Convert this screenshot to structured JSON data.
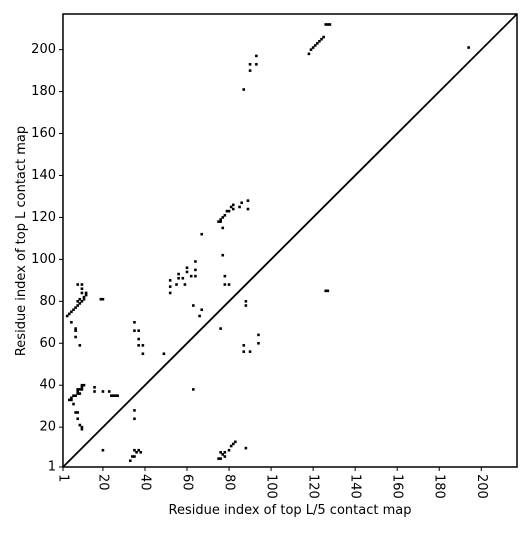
{
  "chart_data": {
    "type": "scatter",
    "x_label": "Residue index of top L/5 contact map",
    "y_label": "Residue index of top L contact map",
    "xlim": [
      1,
      217
    ],
    "ylim": [
      1,
      217
    ],
    "xticks": [
      1,
      20,
      40,
      60,
      80,
      100,
      120,
      140,
      160,
      180,
      200
    ],
    "yticks": [
      1,
      20,
      40,
      60,
      80,
      100,
      120,
      140,
      160,
      180,
      200
    ],
    "series": [
      {
        "color": "#000000",
        "x": [
          3,
          4,
          5,
          6,
          7,
          8,
          9,
          10,
          11,
          12,
          12,
          10,
          11,
          9,
          8,
          8,
          10,
          10,
          5,
          7,
          7,
          7,
          9,
          19,
          20,
          4,
          5,
          5,
          6,
          7,
          8,
          8,
          9,
          10,
          10,
          11,
          10,
          9,
          8,
          6,
          7,
          8,
          8,
          9,
          10,
          10,
          16,
          16,
          20,
          23,
          24,
          25,
          26,
          27,
          35,
          35,
          35,
          35,
          37,
          37,
          37,
          39,
          39,
          49,
          52,
          52,
          52,
          55,
          56,
          56,
          58,
          59,
          60,
          60,
          62,
          64,
          64,
          64,
          63,
          67,
          67,
          66,
          75,
          76,
          76,
          77,
          78,
          79,
          80,
          81,
          82,
          82,
          85,
          86,
          89,
          89,
          77,
          77,
          78,
          78,
          80,
          76,
          88,
          88,
          87,
          87,
          90,
          94,
          94,
          87,
          90,
          90,
          93,
          93,
          118,
          119,
          120,
          121,
          122,
          123,
          124,
          125,
          126,
          127,
          128,
          194,
          63,
          20,
          33,
          34,
          35,
          36,
          37,
          38,
          35,
          75,
          76,
          77,
          78,
          78,
          80,
          81,
          82,
          83,
          76,
          88,
          126,
          127
        ],
        "y": [
          73,
          74,
          75,
          76,
          77,
          78,
          79,
          80,
          82,
          83,
          84,
          84,
          81,
          81,
          80,
          88,
          88,
          86,
          70,
          67,
          66,
          63,
          59,
          81,
          81,
          33,
          33,
          34,
          35,
          35,
          36,
          37,
          38,
          38,
          39,
          40,
          40,
          36,
          38,
          31,
          27,
          27,
          24,
          21,
          19,
          20,
          37,
          39,
          37,
          37,
          35,
          35,
          35,
          35,
          28,
          24,
          70,
          66,
          66,
          62,
          59,
          59,
          55,
          55,
          90,
          87,
          84,
          88,
          91,
          93,
          91,
          88,
          94,
          96,
          92,
          92,
          95,
          99,
          78,
          76,
          112,
          73,
          118,
          118,
          119,
          120,
          121,
          123,
          123,
          125,
          126,
          124,
          125,
          127,
          124,
          128,
          115,
          102,
          92,
          88,
          88,
          67,
          78,
          80,
          59,
          56,
          56,
          64,
          60,
          181,
          190,
          193,
          193,
          197,
          198,
          200,
          201,
          202,
          203,
          204,
          205,
          206,
          212,
          212,
          212,
          201,
          38,
          9,
          4,
          6,
          6,
          8,
          9,
          8,
          9,
          5,
          5,
          7,
          6,
          8,
          9,
          11,
          12,
          13,
          8,
          10,
          85,
          85
        ]
      }
    ]
  }
}
